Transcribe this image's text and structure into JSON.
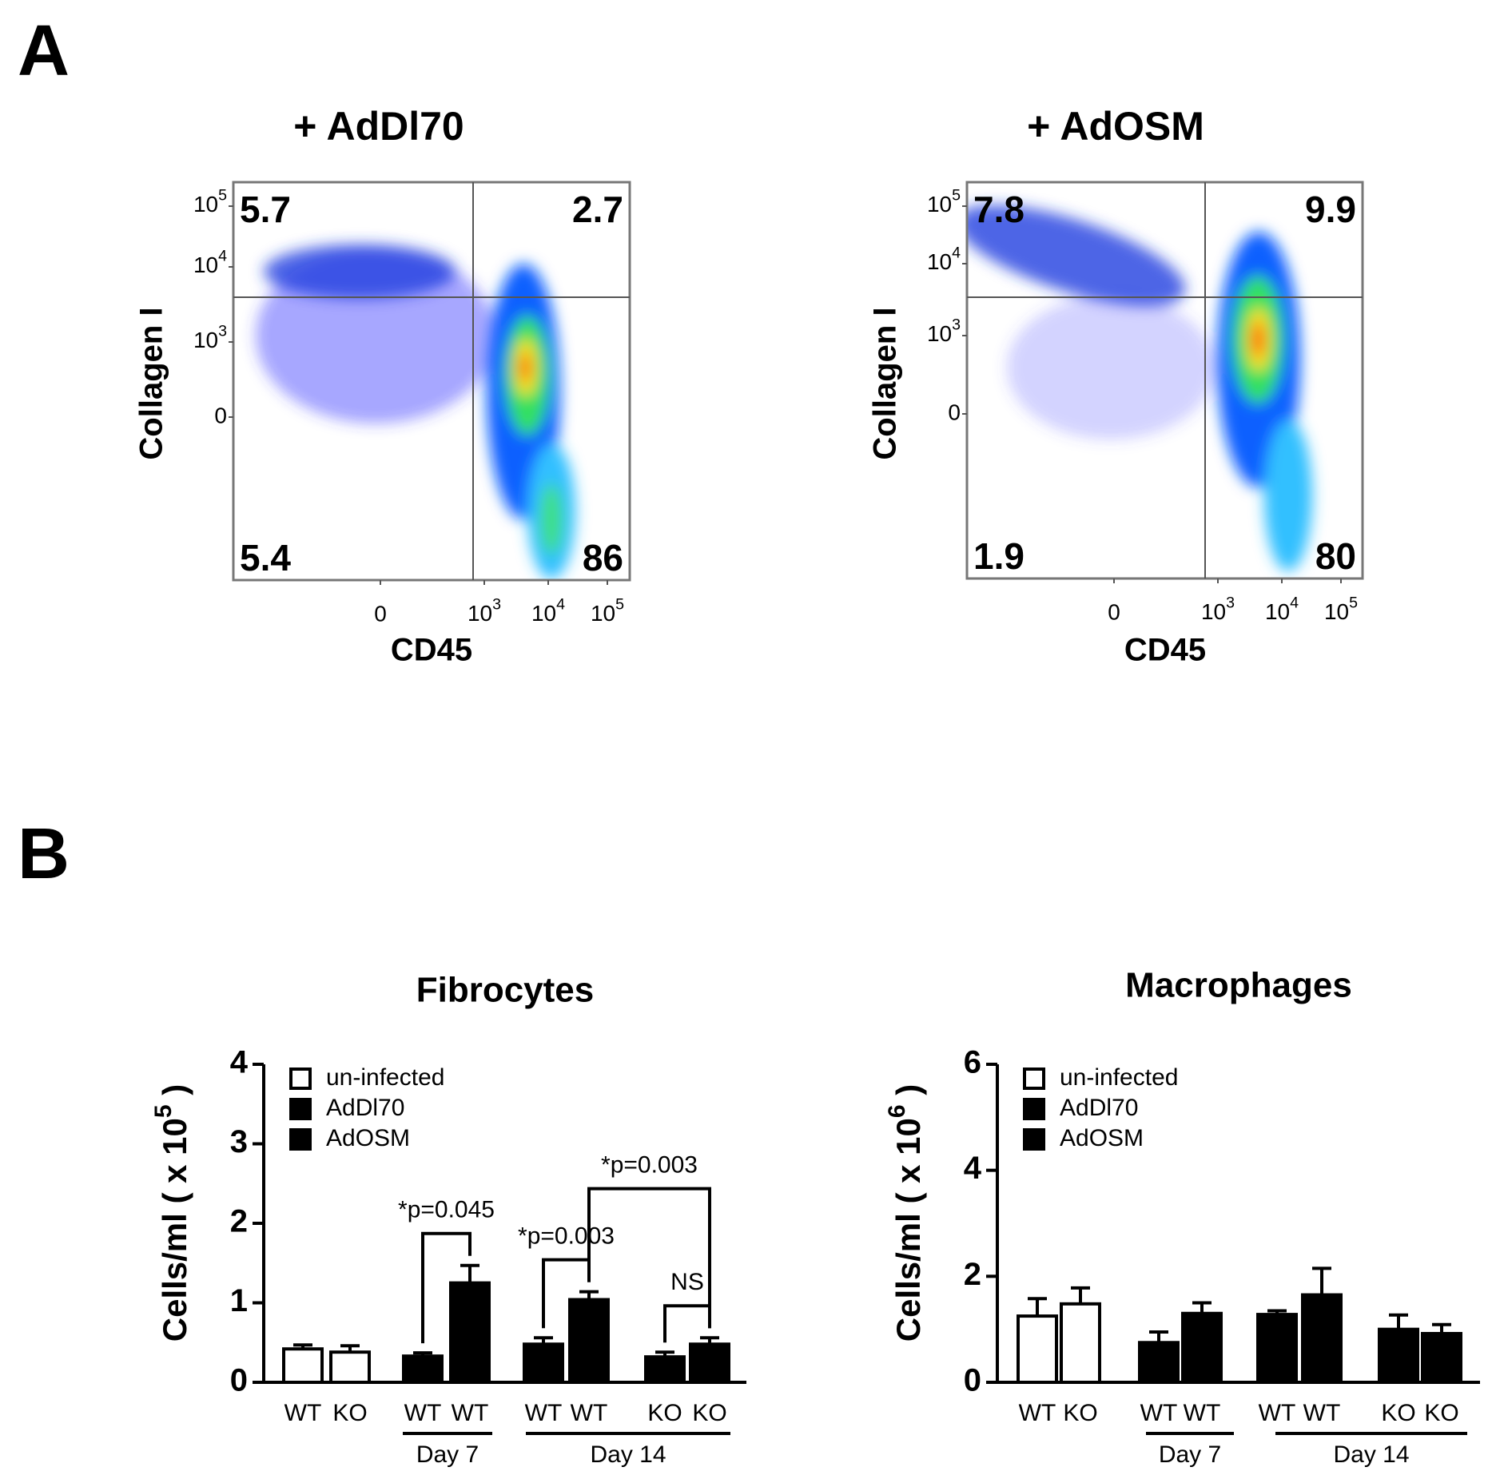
{
  "panel_a": {
    "label": "A",
    "plots": [
      {
        "title": "+ AdDl70",
        "x_label": "CD45",
        "y_label": "Collagen I",
        "quadrants": {
          "upper_left": 5.7,
          "upper_right": 2.7,
          "lower_left": 5.4,
          "lower_right": 86
        },
        "yticks": [
          {
            "base": "10",
            "exponent": "5"
          },
          {
            "base": "10",
            "exponent": "4"
          },
          {
            "base": "10",
            "exponent": "3"
          },
          0
        ],
        "xticks": [
          0,
          {
            "base": "10",
            "exponent": "3"
          },
          {
            "base": "10",
            "exponent": "4"
          },
          {
            "base": "10",
            "exponent": "5"
          }
        ]
      },
      {
        "title": "+ AdOSM",
        "x_label": "CD45",
        "y_label": "Collagen I",
        "quadrants": {
          "upper_left": 7.8,
          "upper_right": 9.9,
          "lower_left": 1.9,
          "lower_right": 80
        },
        "yticks": [
          {
            "base": "10",
            "exponent": "5"
          },
          {
            "base": "10",
            "exponent": "4"
          },
          {
            "base": "10",
            "exponent": "3"
          },
          0
        ],
        "xticks": [
          0,
          {
            "base": "10",
            "exponent": "3"
          },
          {
            "base": "10",
            "exponent": "4"
          },
          {
            "base": "10",
            "exponent": "5"
          }
        ]
      }
    ]
  },
  "panel_b": {
    "label": "B"
  },
  "chart_data": [
    {
      "type": "bar",
      "title": "Fibrocytes",
      "y_label": [
        "Cells/ml ( x 10",
        "5",
        " )"
      ],
      "categories": [
        "WT",
        "KO",
        "WT",
        "WT",
        "WT",
        "WT",
        "KO",
        "KO"
      ],
      "series": [
        {
          "name": "un-infected",
          "color": "#ffffff",
          "values": [
            0.42,
            0.38,
            null,
            null,
            null,
            null,
            null,
            null
          ],
          "errors": [
            0.05,
            0.08,
            null,
            null,
            null,
            null,
            null,
            null
          ]
        },
        {
          "name": "AdDl70",
          "color": "#000000",
          "values": [
            null,
            null,
            0.33,
            null,
            0.48,
            null,
            0.32,
            null
          ],
          "errors": [
            null,
            null,
            0.04,
            null,
            0.08,
            null,
            0.06,
            null
          ]
        },
        {
          "name": "AdOSM",
          "color": "#000000",
          "values": [
            null,
            null,
            null,
            1.25,
            null,
            1.04,
            null,
            0.48
          ],
          "errors": [
            null,
            null,
            null,
            0.22,
            null,
            0.1,
            null,
            0.08
          ]
        }
      ],
      "ylim": [
        0,
        4
      ],
      "yticks": [
        0,
        1,
        2,
        3,
        4
      ],
      "groups": [
        "Day 7",
        "Day 14"
      ],
      "annotations": [
        "*p=0.045",
        "*p=0.003",
        "*p=0.003",
        "NS"
      ]
    },
    {
      "type": "bar",
      "title": "Macrophages",
      "y_label": [
        "Cells/ml ( x 10",
        "6",
        " )"
      ],
      "categories": [
        "WT",
        "KO",
        "WT",
        "WT",
        "WT",
        "WT",
        "KO",
        "KO"
      ],
      "series": [
        {
          "name": "un-infected",
          "color": "#ffffff",
          "values": [
            1.25,
            1.48,
            null,
            null,
            null,
            null,
            null,
            null
          ],
          "errors": [
            0.33,
            0.3,
            null,
            null,
            null,
            null,
            null,
            null
          ]
        },
        {
          "name": "AdDl70",
          "color": "#000000",
          "values": [
            null,
            null,
            0.75,
            null,
            1.28,
            null,
            1.0,
            null
          ],
          "errors": [
            null,
            null,
            0.2,
            null,
            0.07,
            null,
            0.27,
            null
          ]
        },
        {
          "name": "AdOSM",
          "color": "#000000",
          "values": [
            null,
            null,
            null,
            1.3,
            null,
            1.65,
            null,
            0.92
          ],
          "errors": [
            null,
            null,
            null,
            0.2,
            null,
            0.5,
            null,
            0.17
          ]
        }
      ],
      "ylim": [
        0,
        6
      ],
      "yticks": [
        0,
        2,
        4,
        6
      ],
      "groups": [
        "Day 7",
        "Day 14"
      ],
      "annotations": []
    }
  ]
}
